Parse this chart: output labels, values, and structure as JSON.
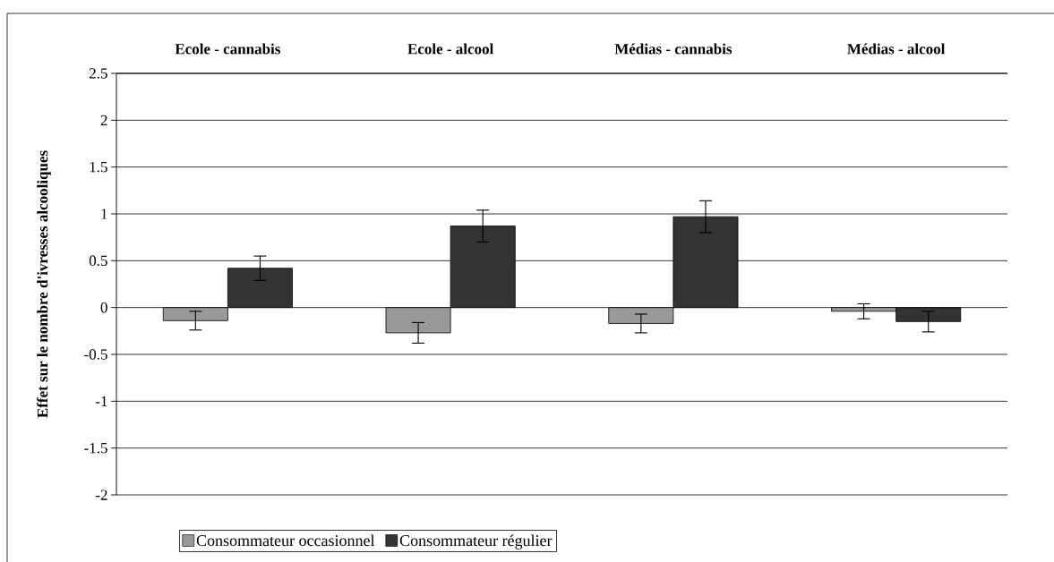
{
  "chart_data": {
    "type": "bar",
    "categories": [
      "Ecole - cannabis",
      "Ecole - alcool",
      "Médias - cannabis",
      "Médias - alcool"
    ],
    "ylabel": "Effet sur le nombre d'ivresses alcooliques",
    "series": [
      {
        "name": "Consommateur occasionnel",
        "color": "#999999",
        "values": [
          -0.14,
          -0.27,
          -0.17,
          -0.04
        ],
        "errors": [
          0.1,
          0.11,
          0.1,
          0.08
        ]
      },
      {
        "name": "Consommateur régulier",
        "color": "#333333",
        "values": [
          0.42,
          0.87,
          0.97,
          -0.15
        ],
        "errors": [
          0.13,
          0.17,
          0.17,
          0.11
        ]
      }
    ],
    "ylim": [
      -2,
      2.5
    ],
    "yticks": [
      -2,
      -1.5,
      -1,
      -0.5,
      0,
      0.5,
      1,
      1.5,
      2,
      2.5
    ],
    "grid": "y",
    "legend": "bottom"
  }
}
